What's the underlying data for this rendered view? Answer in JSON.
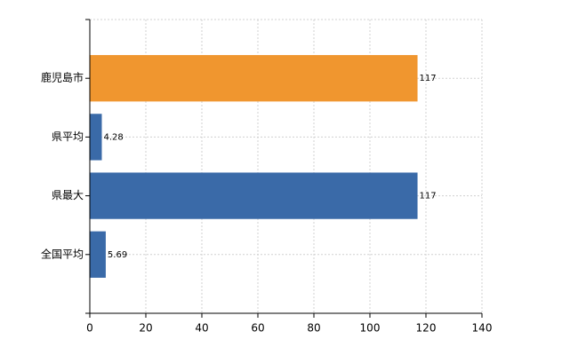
{
  "chart_data": {
    "type": "barh",
    "categories": [
      "鹿児島市",
      "県平均",
      "県最大",
      "全国平均"
    ],
    "values": [
      117,
      4.28,
      117,
      5.69
    ],
    "colors": [
      "#f0962f",
      "#3a6aa8",
      "#3a6aa8",
      "#3a6aa8"
    ],
    "xlim": [
      0,
      140
    ],
    "xticks": [
      0,
      20,
      40,
      60,
      80,
      100,
      120,
      140
    ],
    "grid": true
  }
}
